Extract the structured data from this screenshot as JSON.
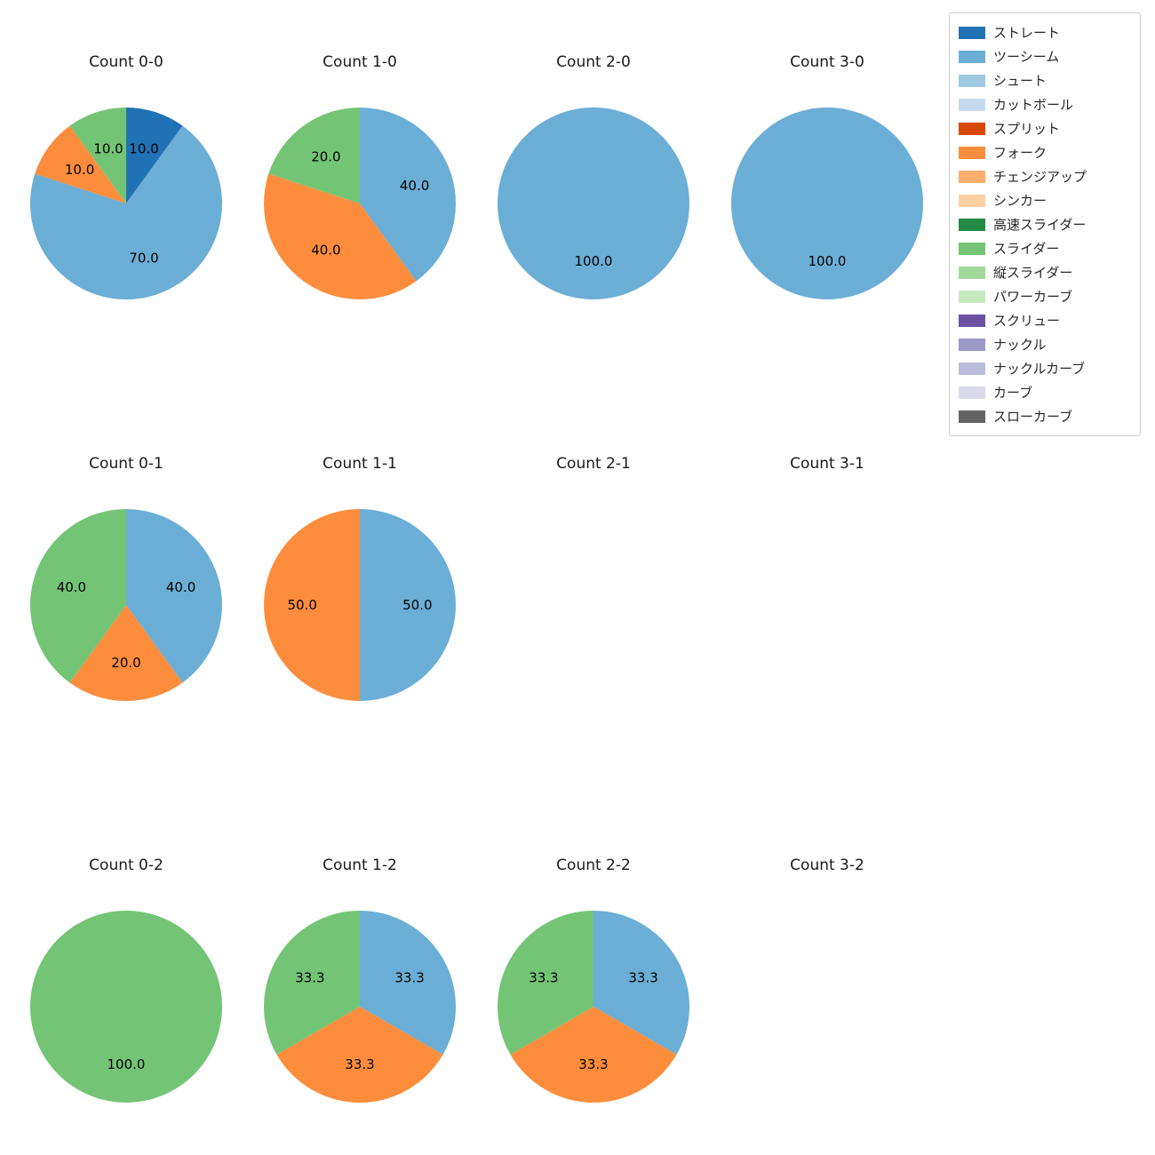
{
  "figure": {
    "background": "#ffffff"
  },
  "legend": {
    "items": [
      {
        "label": "ストレート",
        "color": "#2171b5"
      },
      {
        "label": "ツーシーム",
        "color": "#6baed6"
      },
      {
        "label": "シュート",
        "color": "#9ecae1"
      },
      {
        "label": "カットボール",
        "color": "#c6dbef"
      },
      {
        "label": "スプリット",
        "color": "#d94801"
      },
      {
        "label": "フォーク",
        "color": "#fd8d3c"
      },
      {
        "label": "チェンジアップ",
        "color": "#fdae6b"
      },
      {
        "label": "シンカー",
        "color": "#fdd0a2"
      },
      {
        "label": "高速スライダー",
        "color": "#238b45"
      },
      {
        "label": "スライダー",
        "color": "#74c476"
      },
      {
        "label": "縦スライダー",
        "color": "#a1d99b"
      },
      {
        "label": "パワーカーブ",
        "color": "#c7e9c0"
      },
      {
        "label": "スクリュー",
        "color": "#6a51a3"
      },
      {
        "label": "ナックル",
        "color": "#9e9ac8"
      },
      {
        "label": "ナックルカーブ",
        "color": "#bcbddc"
      },
      {
        "label": "カーブ",
        "color": "#dadaeb"
      },
      {
        "label": "スローカーブ",
        "color": "#636363"
      }
    ]
  },
  "chart_data": [
    {
      "type": "pie",
      "title": "Count 0-0",
      "start_angle": 90,
      "direction": "clockwise",
      "slices": [
        {
          "name": "ストレート",
          "value": 10.0
        },
        {
          "name": "ツーシーム",
          "value": 70.0
        },
        {
          "name": "フォーク",
          "value": 10.0
        },
        {
          "name": "スライダー",
          "value": 10.0
        }
      ]
    },
    {
      "type": "pie",
      "title": "Count 1-0",
      "start_angle": 90,
      "direction": "clockwise",
      "slices": [
        {
          "name": "ツーシーム",
          "value": 40.0
        },
        {
          "name": "フォーク",
          "value": 40.0
        },
        {
          "name": "スライダー",
          "value": 20.0
        }
      ]
    },
    {
      "type": "pie",
      "title": "Count 2-0",
      "start_angle": 90,
      "direction": "clockwise",
      "slices": [
        {
          "name": "ツーシーム",
          "value": 100.0
        }
      ]
    },
    {
      "type": "pie",
      "title": "Count 3-0",
      "start_angle": 90,
      "direction": "clockwise",
      "slices": [
        {
          "name": "ツーシーム",
          "value": 100.0
        }
      ]
    },
    {
      "type": "pie",
      "title": "Count 0-1",
      "start_angle": 90,
      "direction": "clockwise",
      "slices": [
        {
          "name": "ツーシーム",
          "value": 40.0
        },
        {
          "name": "フォーク",
          "value": 20.0
        },
        {
          "name": "スライダー",
          "value": 40.0
        }
      ]
    },
    {
      "type": "pie",
      "title": "Count 1-1",
      "start_angle": 90,
      "direction": "clockwise",
      "slices": [
        {
          "name": "ツーシーム",
          "value": 50.0
        },
        {
          "name": "フォーク",
          "value": 50.0
        }
      ]
    },
    {
      "type": "pie",
      "title": "Count 2-1",
      "start_angle": 90,
      "direction": "clockwise",
      "slices": []
    },
    {
      "type": "pie",
      "title": "Count 3-1",
      "start_angle": 90,
      "direction": "clockwise",
      "slices": []
    },
    {
      "type": "pie",
      "title": "Count 0-2",
      "start_angle": 90,
      "direction": "clockwise",
      "slices": [
        {
          "name": "スライダー",
          "value": 100.0
        }
      ]
    },
    {
      "type": "pie",
      "title": "Count 1-2",
      "start_angle": 90,
      "direction": "clockwise",
      "slices": [
        {
          "name": "ツーシーム",
          "value": 33.3
        },
        {
          "name": "フォーク",
          "value": 33.3
        },
        {
          "name": "スライダー",
          "value": 33.3
        }
      ]
    },
    {
      "type": "pie",
      "title": "Count 2-2",
      "start_angle": 90,
      "direction": "clockwise",
      "slices": [
        {
          "name": "ツーシーム",
          "value": 33.3
        },
        {
          "name": "フォーク",
          "value": 33.3
        },
        {
          "name": "スライダー",
          "value": 33.3
        }
      ]
    },
    {
      "type": "pie",
      "title": "Count 3-2",
      "start_angle": 90,
      "direction": "clockwise",
      "slices": []
    }
  ]
}
